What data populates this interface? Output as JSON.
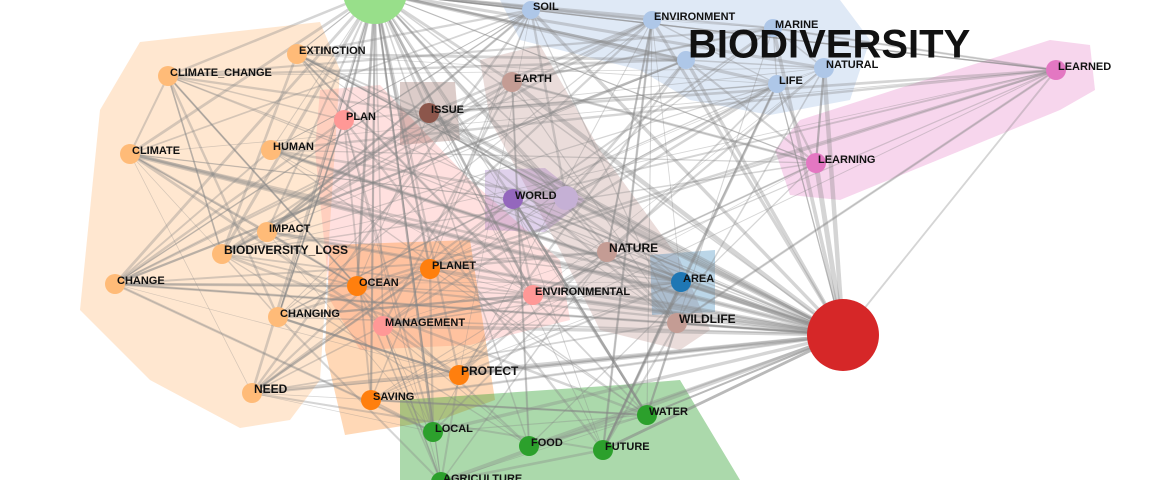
{
  "title": "BIODIVERSITY",
  "nodes": [
    {
      "label": "SOIL"
    },
    {
      "label": "ENVIRONMENT"
    },
    {
      "label": "MARINE"
    },
    {
      "label": "NATURAL"
    },
    {
      "label": "LIFE"
    },
    {
      "label": "LEARNED"
    },
    {
      "label": "LEARNING"
    },
    {
      "label": "EXTINCTION"
    },
    {
      "label": "CLIMATE_CHANGE"
    },
    {
      "label": "CLIMATE"
    },
    {
      "label": "HUMAN"
    },
    {
      "label": "IMPACT"
    },
    {
      "label": "BIODIVERSITY_LOSS"
    },
    {
      "label": "CHANGE"
    },
    {
      "label": "CHANGING"
    },
    {
      "label": "NEED"
    },
    {
      "label": "EARTH"
    },
    {
      "label": "ISSUE"
    },
    {
      "label": "PLAN"
    },
    {
      "label": "WORLD"
    },
    {
      "label": "NATURE"
    },
    {
      "label": "AREA"
    },
    {
      "label": "ENVIRONMENTAL"
    },
    {
      "label": "WILDLIFE"
    },
    {
      "label": "PLANET"
    },
    {
      "label": "OCEAN"
    },
    {
      "label": "MANAGEMENT"
    },
    {
      "label": "PROTECT"
    },
    {
      "label": "SAVING"
    },
    {
      "label": "WATER"
    },
    {
      "label": "LOCAL"
    },
    {
      "label": "FOOD"
    },
    {
      "label": "FUTURE"
    },
    {
      "label": "AGRICULTURE"
    }
  ]
}
